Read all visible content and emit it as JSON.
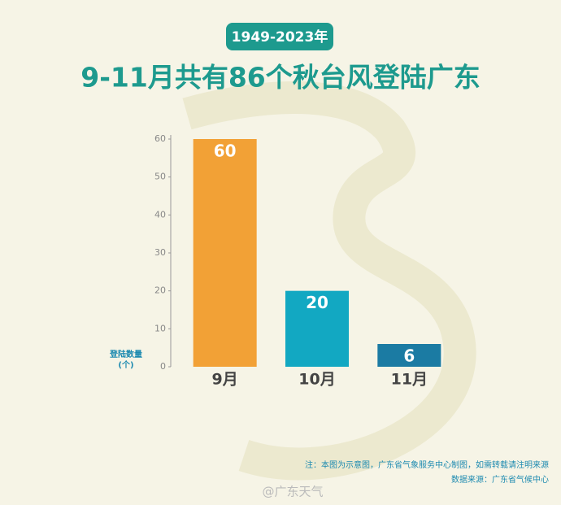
{
  "chart_data": {
    "type": "bar",
    "subtitle": "1949-2023年",
    "title": "9-11月共有86个秋台风登陆广东",
    "y_label": [
      "登陆数量",
      "(个)"
    ],
    "categories": [
      "9月",
      "10月",
      "11月"
    ],
    "values": [
      60,
      20,
      6
    ],
    "colors": [
      "#f2a136",
      "#12a8c2",
      "#1b7ba3"
    ],
    "ylim": [
      0,
      60
    ],
    "yticks": [
      0,
      10,
      20,
      30,
      40,
      50,
      60
    ],
    "notes": [
      "注：本图为示意图，广东省气象服务中心制图，如需转载请注明来源",
      "数据来源：广东省气候中心"
    ],
    "watermark": "@广东天气"
  }
}
